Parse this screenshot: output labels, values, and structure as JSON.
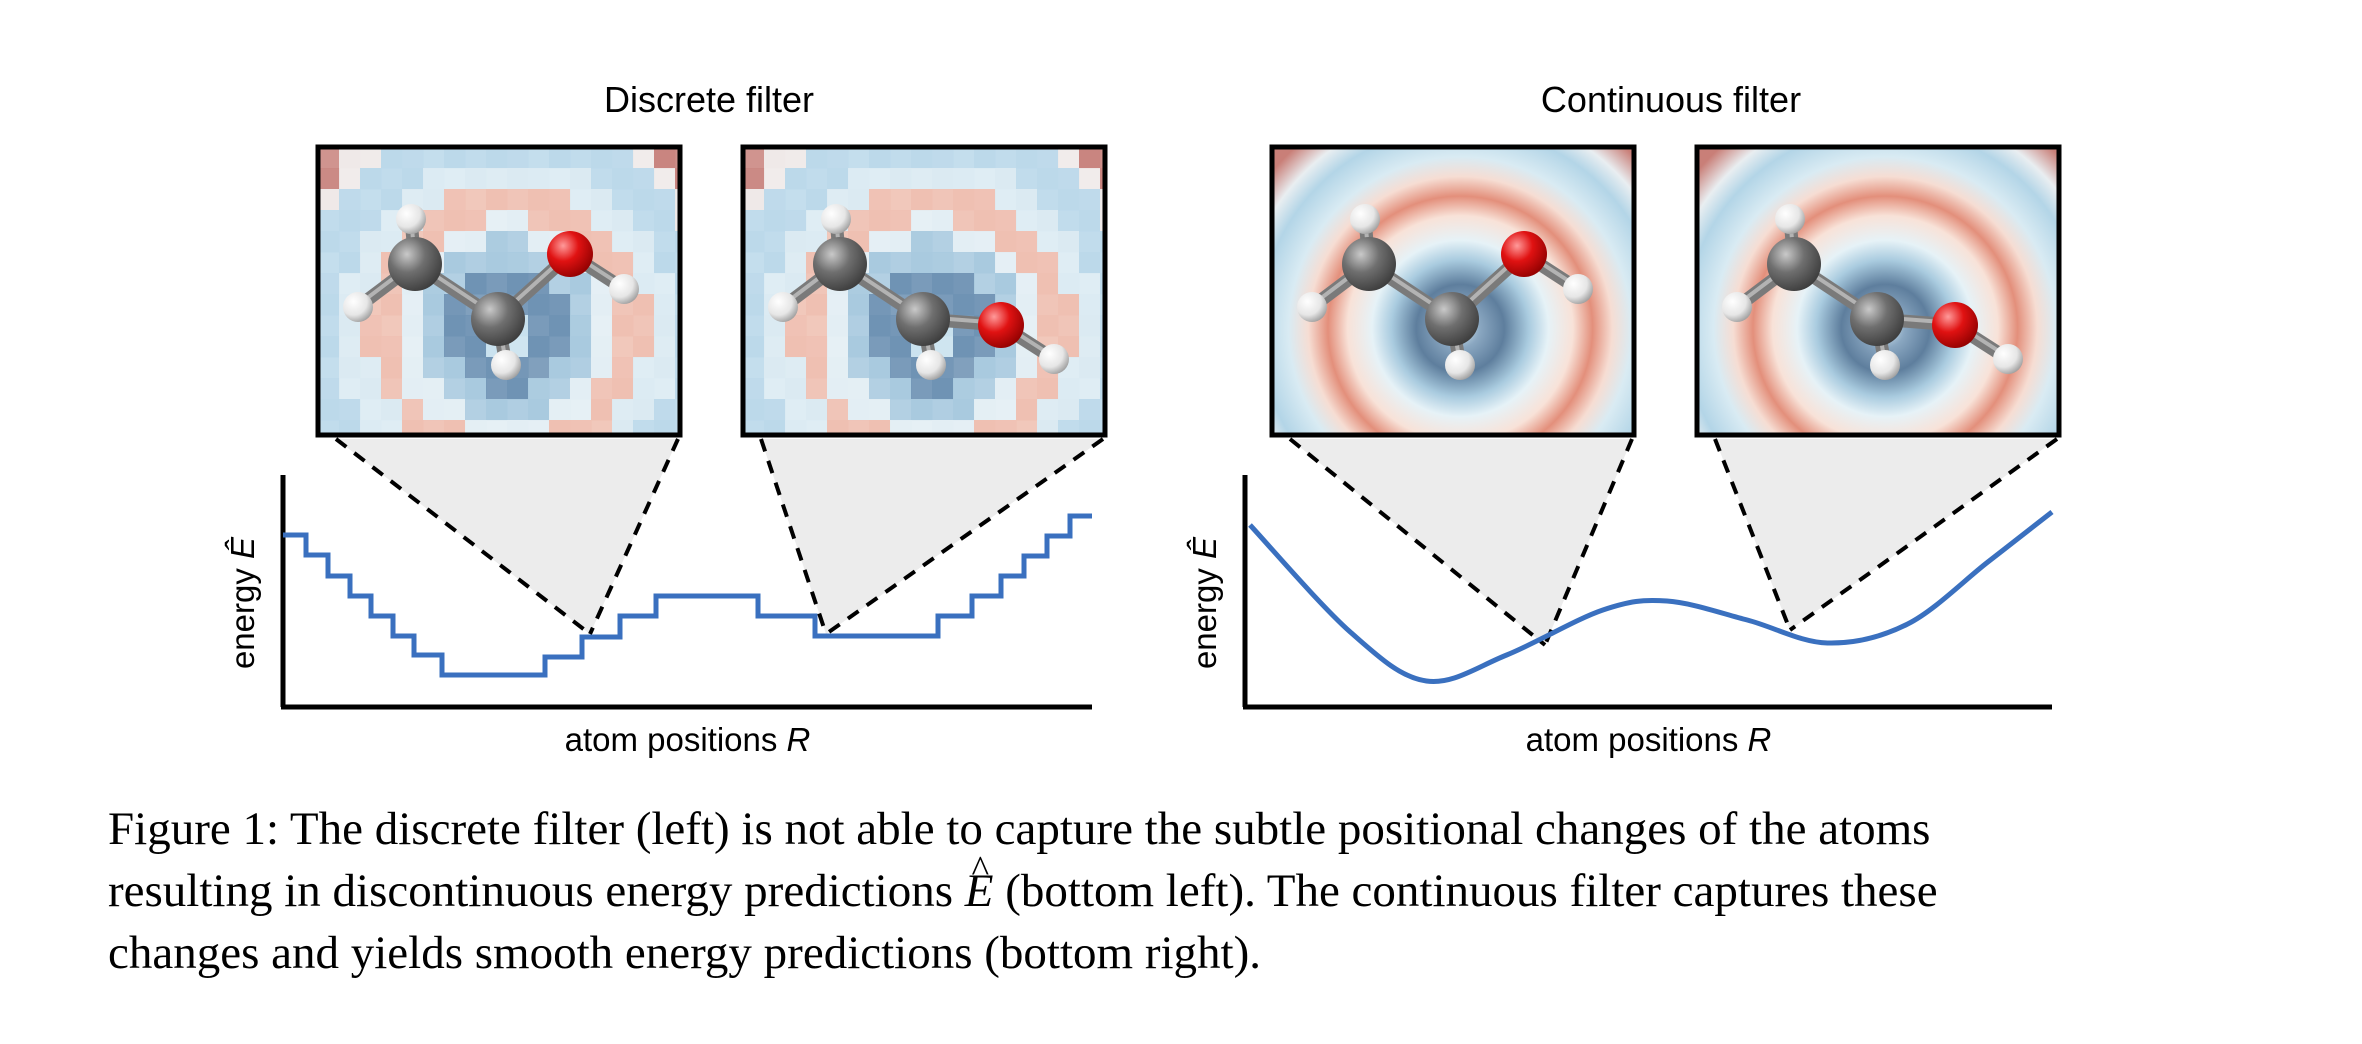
{
  "panels": [
    {
      "title": "Discrete filter",
      "kind": "discrete",
      "ylabel": "energy",
      "ylabel_symbol": "Ê",
      "xlabel": "atom positions",
      "xlabel_symbol": "R"
    },
    {
      "title": "Continuous filter",
      "kind": "continuous",
      "ylabel": "energy",
      "ylabel_symbol": "Ê",
      "xlabel": "atom positions",
      "xlabel_symbol": "R"
    }
  ],
  "caption": {
    "line1": "Figure 1: The discrete filter (left) is not able to capture the subtle positional changes of the atoms",
    "line2_pre": "resulting in discontinuous energy predictions ",
    "line2_symbol": "E",
    "line2_post": " (bottom left). The continuous filter captures these",
    "line3": "changes and yields smooth energy predictions (bottom right)."
  },
  "colors": {
    "curve": "#3a70bf",
    "blue_dark": "#6d8fae",
    "blue_light": "#bcdcec",
    "red": "#e8a08e",
    "carbon": "#6f6f6f",
    "oxygen": "#e01212",
    "hydrogen": "#f2f2f2"
  }
}
